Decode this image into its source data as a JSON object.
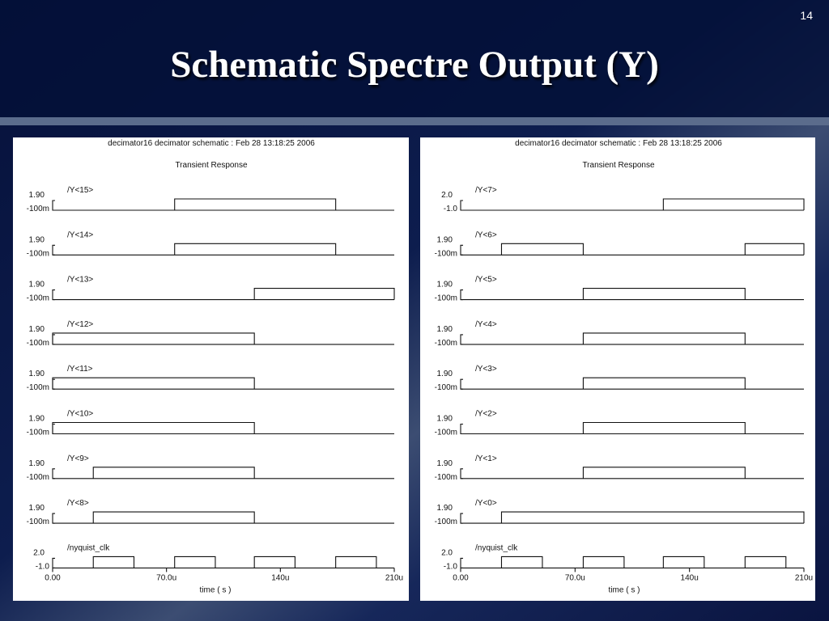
{
  "slide": {
    "number": "14",
    "title": "Schematic Spectre Output (Y)"
  },
  "panels": [
    {
      "header": "decimator16 decimator schematic : Feb 28 13:18:25 2006",
      "subtitle": "Transient Response",
      "x_label": "time ( s )",
      "xlim": [
        0,
        210
      ],
      "xticks": [
        {
          "value": 0,
          "label": "0.00"
        },
        {
          "value": 70,
          "label": "70.0u"
        },
        {
          "value": 140,
          "label": "140u"
        },
        {
          "value": 210,
          "label": "210u"
        }
      ],
      "signals": [
        {
          "name": "/Y<15>",
          "top": "1.90",
          "bottom": "-100m",
          "high": [
            [
              75,
              174
            ]
          ]
        },
        {
          "name": "/Y<14>",
          "top": "1.90",
          "bottom": "-100m",
          "high": [
            [
              75,
              174
            ]
          ]
        },
        {
          "name": "/Y<13>",
          "top": "1.90",
          "bottom": "-100m",
          "high": [
            [
              124,
              210
            ]
          ]
        },
        {
          "name": "/Y<12>",
          "top": "1.90",
          "bottom": "-100m",
          "high": [
            [
              0,
              124
            ]
          ]
        },
        {
          "name": "/Y<11>",
          "top": "1.90",
          "bottom": "-100m",
          "high": [
            [
              0,
              124
            ]
          ]
        },
        {
          "name": "/Y<10>",
          "top": "1.90",
          "bottom": "-100m",
          "high": [
            [
              0,
              124
            ]
          ]
        },
        {
          "name": "/Y<9>",
          "top": "1.90",
          "bottom": "-100m",
          "high": [
            [
              25,
              124
            ]
          ]
        },
        {
          "name": "/Y<8>",
          "top": "1.90",
          "bottom": "-100m",
          "high": [
            [
              25,
              124
            ]
          ]
        },
        {
          "name": "/nyquist_clk",
          "top": "2.0",
          "bottom": "-1.0",
          "high": [
            [
              25,
              50
            ],
            [
              75,
              100
            ],
            [
              124,
              149
            ],
            [
              174,
              199
            ]
          ]
        }
      ]
    },
    {
      "header": "decimator16 decimator schematic : Feb 28 13:18:25 2006",
      "subtitle": "Transient Response",
      "x_label": "time ( s )",
      "xlim": [
        0,
        210
      ],
      "xticks": [
        {
          "value": 0,
          "label": "0.00"
        },
        {
          "value": 70,
          "label": "70.0u"
        },
        {
          "value": 140,
          "label": "140u"
        },
        {
          "value": 210,
          "label": "210u"
        }
      ],
      "signals": [
        {
          "name": "/Y<7>",
          "top": "2.0",
          "bottom": "-1.0",
          "high": [
            [
              124,
              210
            ]
          ]
        },
        {
          "name": "/Y<6>",
          "top": "1.90",
          "bottom": "-100m",
          "high": [
            [
              25,
              75
            ],
            [
              174,
              210
            ]
          ]
        },
        {
          "name": "/Y<5>",
          "top": "1.90",
          "bottom": "-100m",
          "high": [
            [
              75,
              174
            ]
          ]
        },
        {
          "name": "/Y<4>",
          "top": "1.90",
          "bottom": "-100m",
          "high": [
            [
              75,
              174
            ]
          ]
        },
        {
          "name": "/Y<3>",
          "top": "1.90",
          "bottom": "-100m",
          "high": [
            [
              75,
              174
            ]
          ]
        },
        {
          "name": "/Y<2>",
          "top": "1.90",
          "bottom": "-100m",
          "high": [
            [
              75,
              174
            ]
          ]
        },
        {
          "name": "/Y<1>",
          "top": "1.90",
          "bottom": "-100m",
          "high": [
            [
              75,
              174
            ]
          ]
        },
        {
          "name": "/Y<0>",
          "top": "1.90",
          "bottom": "-100m",
          "high": [
            [
              25,
              210
            ]
          ]
        },
        {
          "name": "/nyquist_clk",
          "top": "2.0",
          "bottom": "-1.0",
          "high": [
            [
              25,
              50
            ],
            [
              75,
              100
            ],
            [
              124,
              149
            ],
            [
              174,
              199
            ]
          ]
        }
      ]
    }
  ]
}
